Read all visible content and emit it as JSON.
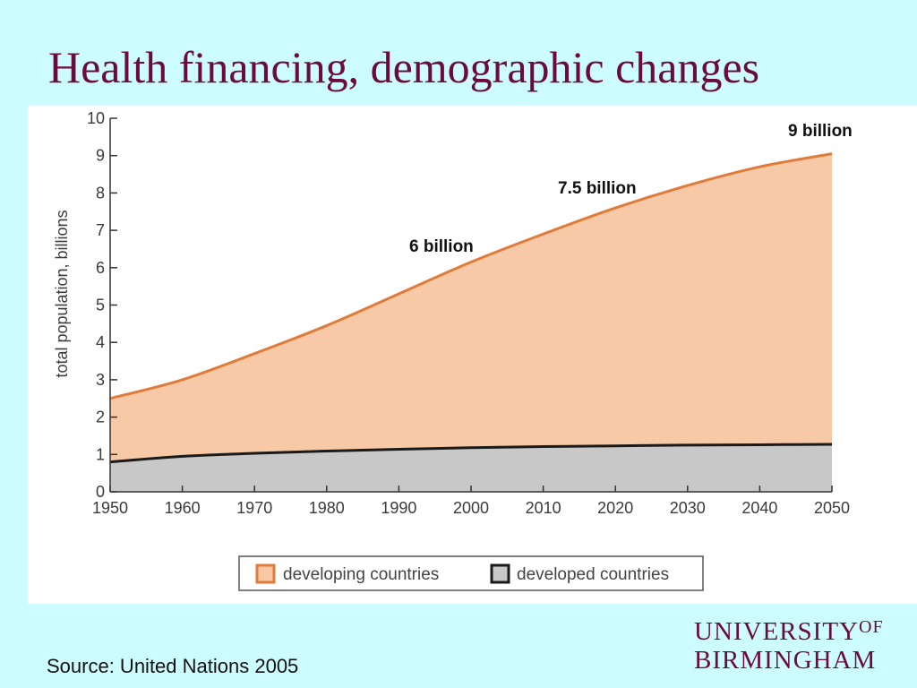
{
  "title": "Health financing, demographic changes",
  "source": "Source: United Nations 2005",
  "logo": {
    "line1": "UNIVERSITY",
    "of": "OF",
    "line2": "BIRMINGHAM",
    "color": "#6b0b3a"
  },
  "chart_data": {
    "type": "area",
    "ylabel": "total population, billions",
    "xlabel": "",
    "x": [
      1950,
      1960,
      1970,
      1980,
      1990,
      2000,
      2010,
      2020,
      2030,
      2040,
      2050
    ],
    "xlim": [
      1950,
      2050
    ],
    "ylim": [
      0,
      10
    ],
    "yticks": [
      0,
      1,
      2,
      3,
      4,
      5,
      6,
      7,
      8,
      9,
      10
    ],
    "stacked": false,
    "series": [
      {
        "name": "developing countries",
        "color": "#e07b39",
        "fill": "#f7c9a6",
        "values": [
          2.5,
          3.0,
          3.7,
          4.45,
          5.3,
          6.15,
          6.9,
          7.6,
          8.2,
          8.7,
          9.05
        ]
      },
      {
        "name": "developed countries",
        "color": "#1a1a1a",
        "fill": "#c8c8c8",
        "values": [
          0.8,
          0.95,
          1.03,
          1.09,
          1.14,
          1.18,
          1.21,
          1.23,
          1.25,
          1.26,
          1.27
        ]
      }
    ],
    "annotations": [
      {
        "text": "6 billion"
      },
      {
        "text": "7.5 billion"
      },
      {
        "text": "9 billion"
      }
    ],
    "legend": "bottom",
    "grid": false
  }
}
